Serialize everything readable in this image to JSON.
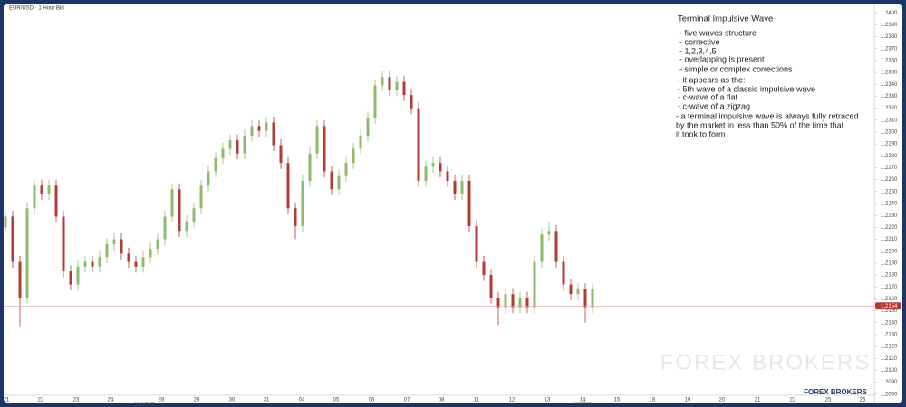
{
  "chart_data": {
    "type": "candlestick",
    "title": "EUR/USD · 1 Hour Bid",
    "up_color": "#8dbb6c",
    "down_color": "#b23b36",
    "open": [
      1.222,
      1.2229,
      1.2191,
      1.2161,
      1.2236,
      1.2255,
      1.2248,
      1.2255,
      1.2229,
      1.2183,
      1.2172,
      1.2187,
      1.2191,
      1.2187,
      1.2195,
      1.2206,
      1.221,
      1.2198,
      1.2191,
      1.2187,
      1.2195,
      1.2202,
      1.221,
      1.2229,
      1.2252,
      1.2217,
      1.2225,
      1.2236,
      1.2255,
      1.2267,
      1.2278,
      1.2286,
      1.2293,
      1.2282,
      1.2297,
      1.2305,
      1.2301,
      1.2308,
      1.2289,
      1.2274,
      1.2236,
      1.2221,
      1.2259,
      1.2282,
      1.2305,
      1.2267,
      1.2252,
      1.2263,
      1.2274,
      1.2286,
      1.2297,
      1.2312,
      1.2339,
      1.2346,
      1.2335,
      1.2342,
      1.2331,
      1.232,
      1.2259,
      1.2271,
      1.2274,
      1.2267,
      1.2259,
      1.2248,
      1.2259,
      1.2221,
      1.2191,
      1.218,
      1.2161,
      1.2153,
      1.2164,
      1.2153,
      1.2161,
      1.2153,
      1.2191,
      1.2214,
      1.2217,
      1.2191,
      1.2172,
      1.2164,
      1.2168,
      1.2153
    ],
    "high": [
      1.2234,
      1.2234,
      1.2196,
      1.2241,
      1.226,
      1.226,
      1.226,
      1.226,
      1.2234,
      1.2188,
      1.2192,
      1.2196,
      1.2196,
      1.22,
      1.2211,
      1.2215,
      1.2215,
      1.2203,
      1.2196,
      1.22,
      1.2207,
      1.2215,
      1.2234,
      1.2257,
      1.2257,
      1.223,
      1.2241,
      1.226,
      1.2272,
      1.2283,
      1.2291,
      1.2298,
      1.2298,
      1.2302,
      1.231,
      1.231,
      1.2313,
      1.2313,
      1.2294,
      1.2279,
      1.2241,
      1.2264,
      1.2287,
      1.231,
      1.231,
      1.2272,
      1.2268,
      1.2279,
      1.2291,
      1.2302,
      1.2317,
      1.2344,
      1.2351,
      1.2351,
      1.2347,
      1.2347,
      1.2336,
      1.2325,
      1.2276,
      1.2279,
      1.2279,
      1.2272,
      1.2264,
      1.2264,
      1.2264,
      1.2226,
      1.2196,
      1.2185,
      1.2166,
      1.2169,
      1.2169,
      1.2166,
      1.2166,
      1.2196,
      1.2219,
      1.2224,
      1.2222,
      1.2196,
      1.2177,
      1.2173,
      1.2173,
      1.2173
    ],
    "low": [
      1.2215,
      1.2186,
      1.2136,
      1.2156,
      1.2231,
      1.2243,
      1.2243,
      1.2224,
      1.2178,
      1.2167,
      1.2167,
      1.2182,
      1.2182,
      1.2182,
      1.219,
      1.2201,
      1.2193,
      1.2186,
      1.2182,
      1.2182,
      1.219,
      1.2197,
      1.2205,
      1.2224,
      1.2212,
      1.2212,
      1.222,
      1.2231,
      1.225,
      1.2262,
      1.2273,
      1.2281,
      1.2277,
      1.2277,
      1.2292,
      1.2296,
      1.2296,
      1.2284,
      1.2269,
      1.2231,
      1.221,
      1.2216,
      1.2254,
      1.2277,
      1.2262,
      1.2247,
      1.2247,
      1.2258,
      1.2269,
      1.2281,
      1.2292,
      1.2307,
      1.2334,
      1.233,
      1.233,
      1.2326,
      1.2315,
      1.2254,
      1.2254,
      1.2266,
      1.2262,
      1.2254,
      1.2243,
      1.2243,
      1.2216,
      1.2186,
      1.2175,
      1.2156,
      1.2138,
      1.2148,
      1.2148,
      1.2148,
      1.2148,
      1.2148,
      1.2186,
      1.2209,
      1.2186,
      1.2167,
      1.2159,
      1.2159,
      1.214,
      1.2148
    ],
    "close": [
      1.2229,
      1.2191,
      1.2161,
      1.2236,
      1.2255,
      1.2248,
      1.2255,
      1.2229,
      1.2183,
      1.2172,
      1.2187,
      1.2191,
      1.2187,
      1.2195,
      1.2206,
      1.221,
      1.2198,
      1.2191,
      1.2187,
      1.2195,
      1.2202,
      1.221,
      1.2229,
      1.2252,
      1.2217,
      1.2225,
      1.2236,
      1.2255,
      1.2267,
      1.2278,
      1.2286,
      1.2293,
      1.2282,
      1.2297,
      1.2305,
      1.2301,
      1.2308,
      1.2289,
      1.2274,
      1.2236,
      1.2221,
      1.2259,
      1.2282,
      1.2305,
      1.2267,
      1.2252,
      1.2263,
      1.2274,
      1.2286,
      1.2297,
      1.2312,
      1.2339,
      1.2346,
      1.2335,
      1.2342,
      1.2331,
      1.232,
      1.2259,
      1.2271,
      1.2274,
      1.2267,
      1.2259,
      1.2248,
      1.2259,
      1.2221,
      1.2191,
      1.218,
      1.2161,
      1.2153,
      1.2164,
      1.2153,
      1.2161,
      1.2153,
      1.2191,
      1.2214,
      1.2217,
      1.2191,
      1.2172,
      1.2164,
      1.2168,
      1.2153,
      1.2168
    ],
    "last_price": 1.2154,
    "ylim": [
      1.2073,
      1.2407
    ],
    "yticks": [
      {
        "value": 1.24,
        "label": "1.2400"
      },
      {
        "value": 1.239,
        "label": "1.2390"
      },
      {
        "value": 1.238,
        "label": "1.2380"
      },
      {
        "value": 1.237,
        "label": "1.2370"
      },
      {
        "value": 1.236,
        "label": "1.2360"
      },
      {
        "value": 1.235,
        "label": "1.2350"
      },
      {
        "value": 1.234,
        "label": "1.2340"
      },
      {
        "value": 1.233,
        "label": "1.2330"
      },
      {
        "value": 1.232,
        "label": "1.2320"
      },
      {
        "value": 1.231,
        "label": "1.2310"
      },
      {
        "value": 1.23,
        "label": "1.2300"
      },
      {
        "value": 1.229,
        "label": "1.2290"
      },
      {
        "value": 1.228,
        "label": "1.2280"
      },
      {
        "value": 1.227,
        "label": "1.2270"
      },
      {
        "value": 1.226,
        "label": "1.2260"
      },
      {
        "value": 1.225,
        "label": "1.2250"
      },
      {
        "value": 1.224,
        "label": "1.2240"
      },
      {
        "value": 1.223,
        "label": "1.2230"
      },
      {
        "value": 1.222,
        "label": "1.2220"
      },
      {
        "value": 1.221,
        "label": "1.2210"
      },
      {
        "value": 1.22,
        "label": "1.2200"
      },
      {
        "value": 1.219,
        "label": "1.2190"
      },
      {
        "value": 1.218,
        "label": "1.2180"
      },
      {
        "value": 1.217,
        "label": "1.2170"
      },
      {
        "value": 1.216,
        "label": "1.2160"
      },
      {
        "value": 1.215,
        "label": "1.2150"
      },
      {
        "value": 1.214,
        "label": "1.2140"
      },
      {
        "value": 1.213,
        "label": "1.2130"
      },
      {
        "value": 1.212,
        "label": "1.2120"
      },
      {
        "value": 1.211,
        "label": "1.2110"
      },
      {
        "value": 1.21,
        "label": "1.2100"
      },
      {
        "value": 1.209,
        "label": "1.2090"
      },
      {
        "value": 1.208,
        "label": "1.2080"
      }
    ],
    "x_labels": [
      "21",
      "22",
      "23",
      "24",
      "28",
      "29",
      "30",
      "31",
      "04",
      "05",
      "06",
      "07",
      "08",
      "11",
      "12",
      "13",
      "14",
      "15",
      "18",
      "19",
      "20",
      "21",
      "22",
      "25",
      "26"
    ],
    "month_labels": [
      "Dec 2020",
      "Jan 2021"
    ],
    "annotation": {
      "title": "Terminal Impulsive Wave",
      "lines": [
        "- five waves structure",
        "- corrective",
        "- 1,2,3,4,5",
        "- overlapping is present",
        "- simple or complex corrections",
        "- it appears as the:",
        "- 5th wave of a classic impulsive wave",
        "- c-wave of a flat",
        "- c-wave of a zigzag",
        "- a terminal impulsive wave is always fully retraced",
        "by the market in less than 50% of the time that",
        "it took to form"
      ]
    },
    "watermark": "FOREX BROKERS",
    "logo": "FOREX BROKERS"
  }
}
